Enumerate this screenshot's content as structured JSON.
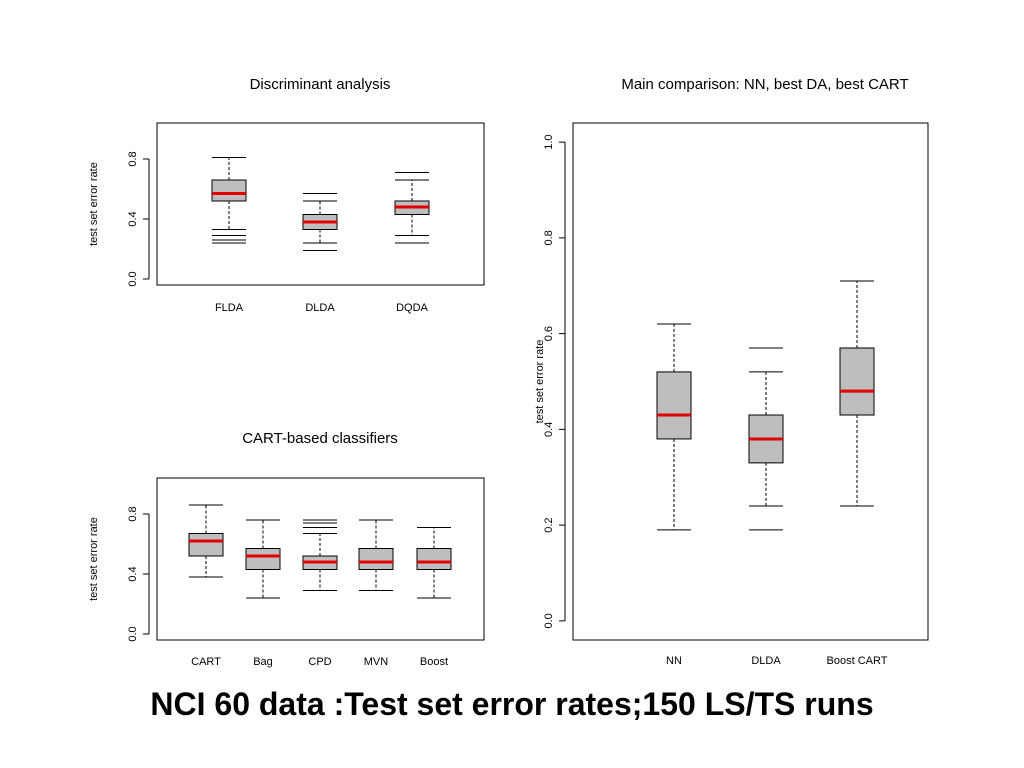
{
  "slide": {
    "caption": "NCI 60 data :Test set error rates;150 LS/TS runs"
  },
  "colors": {
    "box_fill": "#bebebe",
    "median": "#e00000",
    "axis": "#000000"
  },
  "chart_data": [
    {
      "id": "discriminant",
      "type": "boxplot",
      "title": "Discriminant analysis",
      "ylabel": "test set error rate",
      "ylim": [
        0,
        1
      ],
      "yticks": [
        0.0,
        0.4,
        0.8
      ],
      "ytick_labels": [
        "0.0",
        "0.4",
        "0.8"
      ],
      "categories": [
        "FLDA",
        "DLDA",
        "DQDA"
      ],
      "boxes": [
        {
          "label": "FLDA",
          "whisker_low": 0.33,
          "q1": 0.52,
          "median": 0.57,
          "q3": 0.66,
          "whisker_high": 0.81,
          "outliers": [
            0.29,
            0.26,
            0.24
          ]
        },
        {
          "label": "DLDA",
          "whisker_low": 0.24,
          "q1": 0.33,
          "median": 0.38,
          "q3": 0.43,
          "whisker_high": 0.52,
          "outliers": [
            0.57,
            0.19
          ]
        },
        {
          "label": "DQDA",
          "whisker_low": 0.29,
          "q1": 0.43,
          "median": 0.48,
          "q3": 0.52,
          "whisker_high": 0.66,
          "outliers": [
            0.71,
            0.24
          ]
        }
      ],
      "grid": false
    },
    {
      "id": "cart",
      "type": "boxplot",
      "title": "CART-based classifiers",
      "ylabel": "test set error rate",
      "ylim": [
        0,
        1
      ],
      "yticks": [
        0.0,
        0.4,
        0.8
      ],
      "ytick_labels": [
        "0.0",
        "0.4",
        "0.8"
      ],
      "categories": [
        "CART",
        "Bag",
        "CPD",
        "MVN",
        "Boost"
      ],
      "boxes": [
        {
          "label": "CART",
          "whisker_low": 0.38,
          "q1": 0.52,
          "median": 0.62,
          "q3": 0.67,
          "whisker_high": 0.86,
          "outliers": []
        },
        {
          "label": "Bag",
          "whisker_low": 0.24,
          "q1": 0.43,
          "median": 0.52,
          "q3": 0.57,
          "whisker_high": 0.76,
          "outliers": []
        },
        {
          "label": "CPD",
          "whisker_low": 0.29,
          "q1": 0.43,
          "median": 0.48,
          "q3": 0.52,
          "whisker_high": 0.67,
          "outliers": [
            0.71,
            0.74,
            0.76
          ]
        },
        {
          "label": "MVN",
          "whisker_low": 0.29,
          "q1": 0.43,
          "median": 0.48,
          "q3": 0.57,
          "whisker_high": 0.76,
          "outliers": []
        },
        {
          "label": "Boost",
          "whisker_low": 0.24,
          "q1": 0.43,
          "median": 0.48,
          "q3": 0.57,
          "whisker_high": 0.71,
          "outliers": []
        }
      ],
      "grid": false
    },
    {
      "id": "main",
      "type": "boxplot",
      "title": "Main comparison: NN, best DA, best CART",
      "ylabel": "test set error rate",
      "ylim": [
        0,
        1
      ],
      "yticks": [
        0.0,
        0.2,
        0.4,
        0.6,
        0.8,
        1.0
      ],
      "ytick_labels": [
        "0.0",
        "0.2",
        "0.4",
        "0.6",
        "0.8",
        "1.0"
      ],
      "categories": [
        "NN",
        "DLDA",
        "Boost CART"
      ],
      "boxes": [
        {
          "label": "NN",
          "whisker_low": 0.19,
          "q1": 0.38,
          "median": 0.43,
          "q3": 0.52,
          "whisker_high": 0.62,
          "outliers": []
        },
        {
          "label": "DLDA",
          "whisker_low": 0.24,
          "q1": 0.33,
          "median": 0.38,
          "q3": 0.43,
          "whisker_high": 0.52,
          "outliers": [
            0.57,
            0.19
          ]
        },
        {
          "label": "Boost CART",
          "whisker_low": 0.24,
          "q1": 0.43,
          "median": 0.48,
          "q3": 0.57,
          "whisker_high": 0.71,
          "outliers": []
        }
      ],
      "grid": false
    }
  ]
}
